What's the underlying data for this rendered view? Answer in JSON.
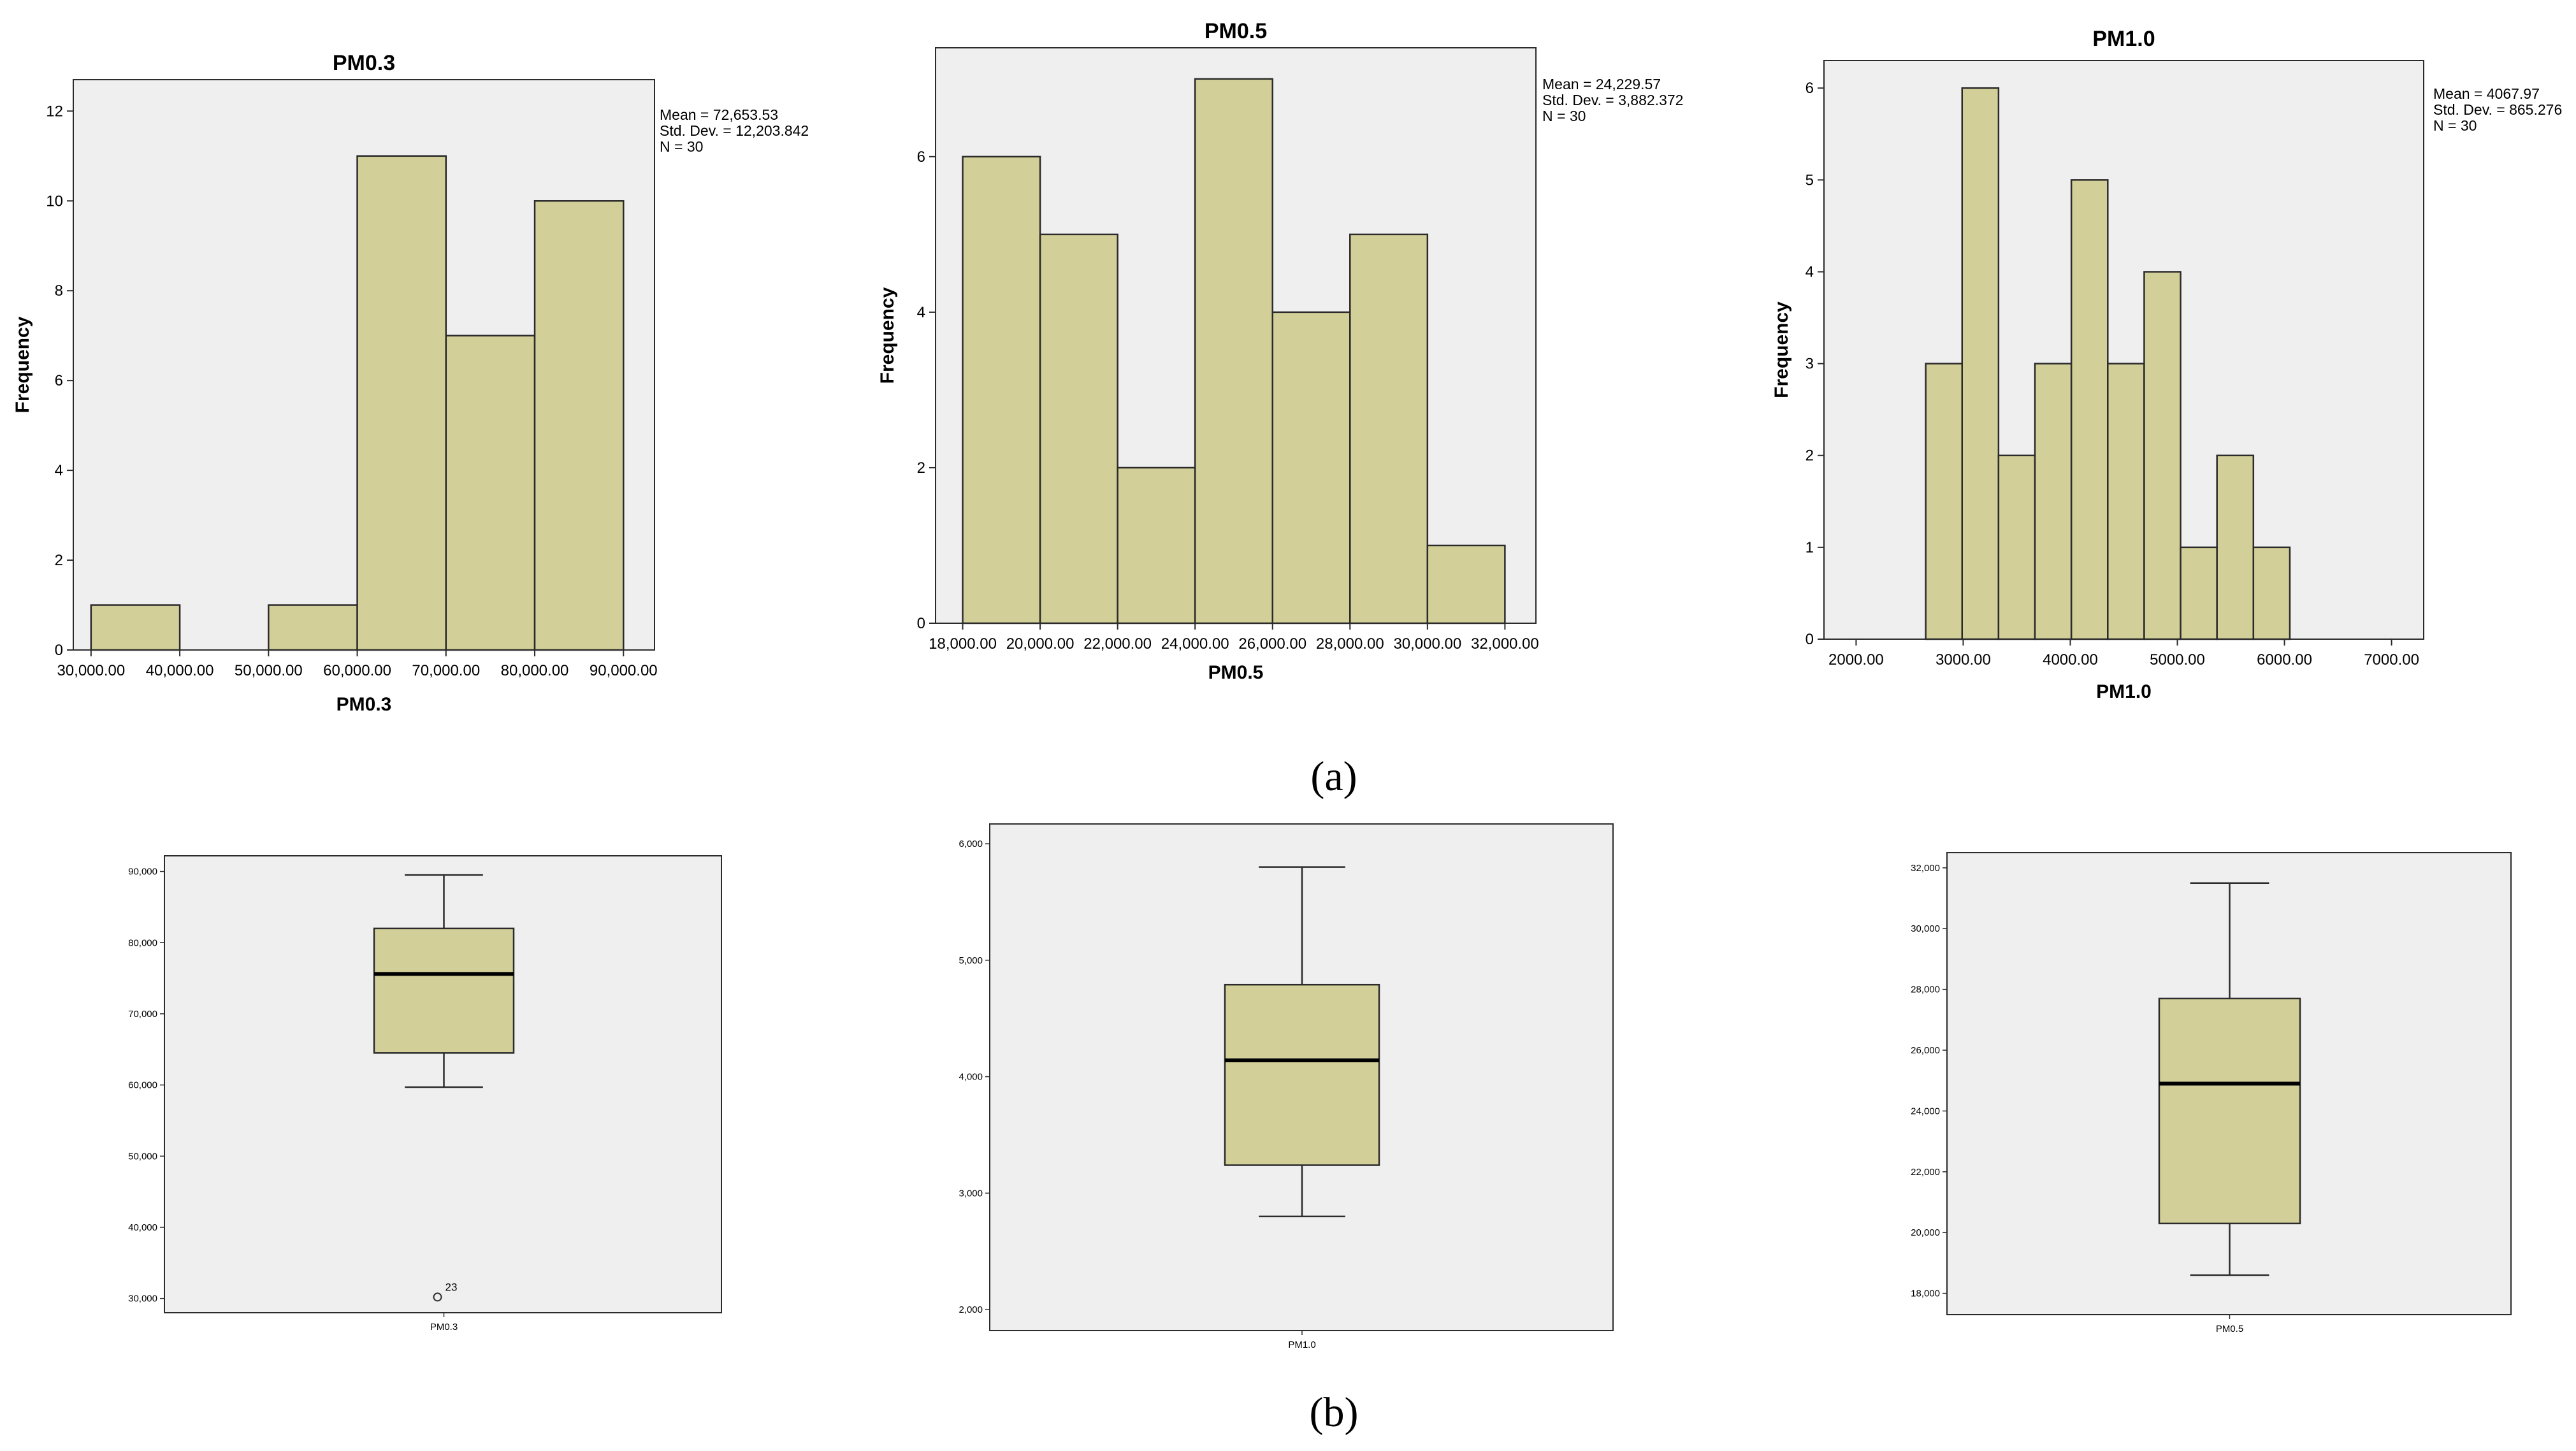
{
  "colors": {
    "fill": "#d3cf98",
    "plot_bg": "#efefef",
    "stroke": "#2b2b2b"
  },
  "captions": {
    "a": "(a)",
    "b": "(b)"
  },
  "chart_data": [
    {
      "type": "bar",
      "kind": "histogram",
      "title": "PM0.3",
      "xlabel": "PM0.3",
      "ylabel": "Frequency",
      "bins": [
        [
          30000,
          40000
        ],
        [
          40000,
          50000
        ],
        [
          50000,
          60000
        ],
        [
          60000,
          70000
        ],
        [
          70000,
          80000
        ],
        [
          80000,
          90000
        ]
      ],
      "values": [
        1,
        0,
        1,
        11,
        7,
        10
      ],
      "xlim": [
        28000,
        93500
      ],
      "ylim": [
        0,
        12.7
      ],
      "xticks": [
        30000,
        40000,
        50000,
        60000,
        70000,
        80000,
        90000
      ],
      "xtick_labels": [
        "30,000.00",
        "40,000.00",
        "50,000.00",
        "60,000.00",
        "70,000.00",
        "80,000.00",
        "90,000.00"
      ],
      "yticks": [
        0,
        2,
        4,
        6,
        8,
        10,
        12
      ],
      "ytick_labels": [
        "0",
        "2",
        "4",
        "6",
        "8",
        "10",
        "12"
      ],
      "stats": [
        "Mean = 72,653.53",
        "Std. Dev. = 12,203.842",
        "N = 30"
      ]
    },
    {
      "type": "bar",
      "kind": "histogram",
      "title": "PM0.5",
      "xlabel": "PM0.5",
      "ylabel": "Frequency",
      "bins": [
        [
          18000,
          20000
        ],
        [
          20000,
          22000
        ],
        [
          22000,
          24000
        ],
        [
          24000,
          26000
        ],
        [
          26000,
          28000
        ],
        [
          28000,
          30000
        ],
        [
          30000,
          32000
        ]
      ],
      "values": [
        6,
        5,
        2,
        7,
        4,
        5,
        1
      ],
      "xlim": [
        17300,
        32800
      ],
      "ylim": [
        0,
        7.4
      ],
      "xticks": [
        18000,
        20000,
        22000,
        24000,
        26000,
        28000,
        30000,
        32000
      ],
      "xtick_labels": [
        "18,000.00",
        "20,000.00",
        "22,000.00",
        "24,000.00",
        "26,000.00",
        "28,000.00",
        "30,000.00",
        "32,000.00"
      ],
      "yticks": [
        0,
        2,
        4,
        6
      ],
      "ytick_labels": [
        "0",
        "2",
        "4",
        "6"
      ],
      "stats": [
        "Mean = 24,229.57",
        "Std. Dev. = 3,882.372",
        "N = 30"
      ]
    },
    {
      "type": "bar",
      "kind": "histogram",
      "title": "PM1.0",
      "xlabel": "PM1.0",
      "ylabel": "Frequency",
      "bins": [
        [
          2650,
          2990
        ],
        [
          2990,
          3330
        ],
        [
          3330,
          3670
        ],
        [
          3670,
          4010
        ],
        [
          4010,
          4350
        ],
        [
          4350,
          4690
        ],
        [
          4690,
          5030
        ],
        [
          5030,
          5370
        ],
        [
          5370,
          5710
        ],
        [
          5710,
          6050
        ]
      ],
      "values": [
        3,
        6,
        2,
        3,
        5,
        3,
        4,
        1,
        2,
        1
      ],
      "xlim": [
        1700,
        7300
      ],
      "ylim": [
        0,
        6.3
      ],
      "xticks": [
        2000,
        3000,
        4000,
        5000,
        6000,
        7000
      ],
      "xtick_labels": [
        "2000.00",
        "3000.00",
        "4000.00",
        "5000.00",
        "6000.00",
        "7000.00"
      ],
      "yticks": [
        0,
        1,
        2,
        3,
        4,
        5,
        6
      ],
      "ytick_labels": [
        "0",
        "1",
        "2",
        "3",
        "4",
        "5",
        "6"
      ],
      "stats": [
        "Mean = 4067.97",
        "Std. Dev. = 865.276",
        "N = 30"
      ]
    },
    {
      "type": "box",
      "category": "PM0.3",
      "whisker_low": 59700,
      "q1": 64500,
      "median": 75600,
      "q3": 82000,
      "whisker_high": 89500,
      "outliers": [
        {
          "value": 30200,
          "label": "23"
        }
      ],
      "ylim": [
        28000,
        92200
      ],
      "yticks": [
        30000,
        40000,
        50000,
        60000,
        70000,
        80000,
        90000
      ],
      "ytick_labels": [
        "30,000",
        "40,000",
        "50,000",
        "60,000",
        "70,000",
        "80,000",
        "90,000"
      ]
    },
    {
      "type": "box",
      "category": "PM1.0",
      "whisker_low": 2800,
      "q1": 3240,
      "median": 4140,
      "q3": 4790,
      "whisker_high": 5800,
      "outliers": [],
      "ylim": [
        1820,
        6170
      ],
      "yticks": [
        2000,
        3000,
        4000,
        5000,
        6000
      ],
      "ytick_labels": [
        "2,000",
        "3,000",
        "4,000",
        "5,000",
        "6,000"
      ]
    },
    {
      "type": "box",
      "category": "PM0.5",
      "whisker_low": 18600,
      "q1": 20300,
      "median": 24900,
      "q3": 27700,
      "whisker_high": 31500,
      "outliers": [],
      "ylim": [
        17300,
        32500
      ],
      "yticks": [
        18000,
        20000,
        22000,
        24000,
        26000,
        28000,
        30000,
        32000
      ],
      "ytick_labels": [
        "18,000",
        "20,000",
        "22,000",
        "24,000",
        "26,000",
        "28,000",
        "30,000",
        "32,000"
      ]
    }
  ]
}
